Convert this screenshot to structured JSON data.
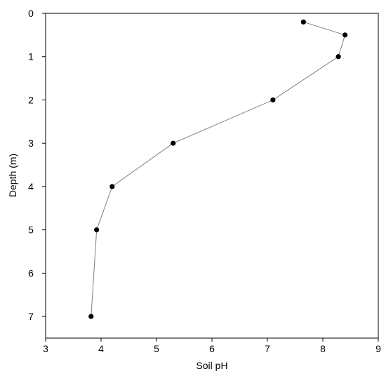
{
  "chart_data": {
    "type": "line",
    "title": "",
    "xlabel": "Soil pH",
    "ylabel": "Depth (m)",
    "xlim": [
      3,
      9
    ],
    "ylim": [
      0,
      7.5
    ],
    "y_inverted": true,
    "x_ticks": [
      3,
      4,
      5,
      6,
      7,
      8,
      9
    ],
    "y_ticks": [
      0,
      1,
      2,
      3,
      4,
      5,
      6,
      7
    ],
    "grid": false,
    "legend": "none",
    "series": [
      {
        "points": [
          {
            "x": 7.65,
            "y": 0.2
          },
          {
            "x": 8.4,
            "y": 0.5
          },
          {
            "x": 8.28,
            "y": 1.0
          },
          {
            "x": 7.1,
            "y": 2.0
          },
          {
            "x": 5.3,
            "y": 3.0
          },
          {
            "x": 4.2,
            "y": 4.0
          },
          {
            "x": 3.92,
            "y": 5.0
          },
          {
            "x": 3.82,
            "y": 7.0
          }
        ],
        "line_color": "#808080",
        "marker_color": "#000000"
      }
    ]
  }
}
